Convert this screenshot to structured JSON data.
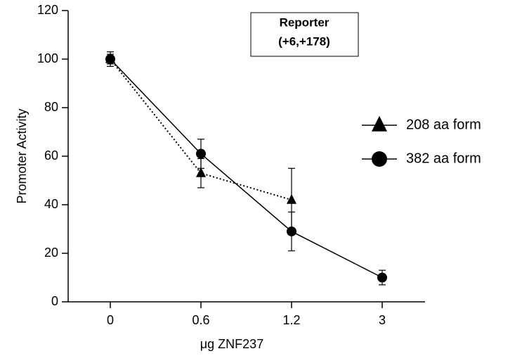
{
  "chart_data": {
    "type": "line",
    "xlabel": "μg ZNF237",
    "ylabel": "Promoter Activity",
    "annotation": [
      "Reporter",
      "(+6,+178)"
    ],
    "categories": [
      "0",
      "0.6",
      "1.2",
      "3"
    ],
    "ylim": [
      0,
      120
    ],
    "yticks": [
      0,
      20,
      40,
      60,
      80,
      100,
      120
    ],
    "legend": "right",
    "series": [
      {
        "name": "208 aa form",
        "color": "#000000",
        "marker": "triangle",
        "linestyle": "dotted",
        "values": [
          100,
          53,
          42,
          null
        ],
        "errors": [
          2,
          6,
          13,
          null
        ]
      },
      {
        "name": "382 aa form",
        "color": "#000000",
        "marker": "circle",
        "linestyle": "solid",
        "values": [
          100,
          61,
          29,
          10
        ],
        "errors": [
          3,
          6,
          8,
          3
        ]
      }
    ]
  }
}
